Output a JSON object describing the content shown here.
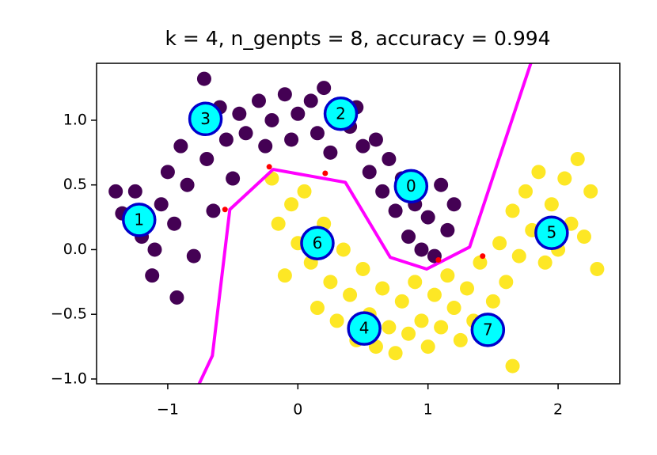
{
  "chart_data": {
    "type": "scatter",
    "title": "k = 4, n_genpts = 8, accuracy = 0.994",
    "xlim": [
      -1.547,
      2.474
    ],
    "ylim": [
      -1.037,
      1.44
    ],
    "xticks": [
      {
        "value": -1,
        "label": "−1"
      },
      0,
      1,
      2
    ],
    "yticks": [
      {
        "value": -1,
        "label": "−1.0"
      },
      {
        "value": -0.5,
        "label": "−0.5"
      },
      {
        "value": 0,
        "label": "0.0"
      },
      {
        "value": 0.5,
        "label": "0.5"
      },
      {
        "value": 1,
        "label": "1.0"
      }
    ],
    "series": [
      {
        "type": "scatter",
        "color": "#440154",
        "x": [
          -1.35,
          -1.25,
          -1.2,
          -1.1,
          -1.05,
          -1.0,
          -0.95,
          -0.9,
          -0.85,
          -0.8,
          -0.75,
          -0.7,
          -0.65,
          -0.6,
          -0.55,
          -0.5,
          -0.45,
          -0.4,
          -0.3,
          -0.25,
          -0.2,
          -0.1,
          -0.05,
          0.0,
          0.1,
          0.15,
          0.2,
          0.25,
          0.3,
          0.4,
          0.45,
          0.5,
          0.55,
          0.6,
          0.65,
          0.7,
          0.75,
          0.8,
          0.85,
          0.9,
          0.95,
          1.0,
          1.05,
          1.1,
          1.15,
          1.2,
          -0.93,
          -1.12,
          -0.72,
          -1.4
        ],
        "y": [
          0.28,
          0.45,
          0.1,
          0.0,
          0.35,
          0.6,
          0.2,
          0.8,
          0.5,
          -0.05,
          0.95,
          0.7,
          0.3,
          1.1,
          0.85,
          0.55,
          1.05,
          0.9,
          1.15,
          0.8,
          1.0,
          1.2,
          0.85,
          1.05,
          1.15,
          0.9,
          1.25,
          0.75,
          1.0,
          0.95,
          1.1,
          0.8,
          0.6,
          0.85,
          0.45,
          0.7,
          0.3,
          0.55,
          0.1,
          0.35,
          0.0,
          0.25,
          -0.05,
          0.5,
          0.15,
          0.35,
          -0.37,
          -0.2,
          1.32,
          0.45
        ]
      },
      {
        "type": "scatter",
        "color": "#fde725",
        "x": [
          -0.2,
          -0.15,
          -0.1,
          -0.05,
          0.0,
          0.05,
          0.1,
          0.15,
          0.2,
          0.25,
          0.3,
          0.35,
          0.4,
          0.45,
          0.5,
          0.55,
          0.6,
          0.65,
          0.7,
          0.75,
          0.8,
          0.85,
          0.9,
          0.95,
          1.0,
          1.05,
          1.1,
          1.15,
          1.2,
          1.25,
          1.3,
          1.35,
          1.4,
          1.5,
          1.55,
          1.6,
          1.65,
          1.7,
          1.75,
          1.8,
          1.85,
          1.9,
          1.95,
          2.0,
          2.05,
          2.1,
          2.15,
          2.2,
          2.25,
          1.65,
          2.3
        ],
        "y": [
          0.55,
          0.2,
          -0.2,
          0.35,
          0.05,
          0.45,
          -0.1,
          -0.45,
          0.2,
          -0.25,
          -0.55,
          0.0,
          -0.35,
          -0.7,
          -0.15,
          -0.5,
          -0.75,
          -0.3,
          -0.6,
          -0.8,
          -0.4,
          -0.65,
          -0.25,
          -0.55,
          -0.75,
          -0.35,
          -0.6,
          -0.2,
          -0.45,
          -0.7,
          -0.3,
          -0.55,
          -0.1,
          -0.4,
          0.05,
          -0.25,
          0.3,
          -0.05,
          0.45,
          0.15,
          0.6,
          -0.1,
          0.35,
          0.0,
          0.55,
          0.2,
          0.7,
          0.1,
          0.45,
          -0.9,
          -0.15
        ]
      },
      {
        "type": "line",
        "color": "#ff00ff",
        "x": [
          -0.76,
          -0.657,
          -0.523,
          -0.19,
          0.365,
          0.71,
          0.99,
          1.32,
          1.79
        ],
        "y": [
          -1.04,
          -0.82,
          0.31,
          0.62,
          0.52,
          -0.06,
          -0.15,
          0.02,
          1.44
        ]
      },
      {
        "type": "scatter",
        "color": "#ff0000",
        "x": [
          -0.56,
          -0.22,
          0.21,
          1.08,
          1.42
        ],
        "y": [
          0.31,
          0.64,
          0.59,
          -0.08,
          -0.05
        ]
      },
      {
        "type": "centroids",
        "color": "#00ffff",
        "edgecolor": "#0000cc",
        "labels": [
          "0",
          "1",
          "2",
          "3",
          "4",
          "5",
          "6",
          "7"
        ],
        "x": [
          0.87,
          -1.22,
          0.33,
          -0.71,
          0.51,
          1.95,
          0.15,
          1.46
        ],
        "y": [
          0.49,
          0.23,
          1.05,
          1.01,
          -0.61,
          0.13,
          0.05,
          -0.62
        ]
      }
    ]
  }
}
